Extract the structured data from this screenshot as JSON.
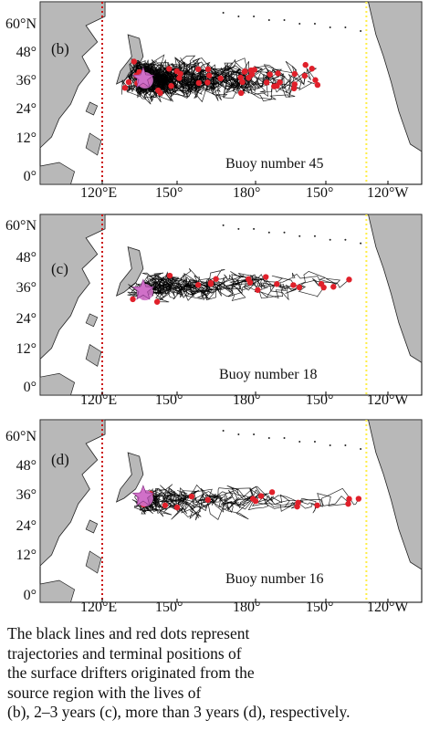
{
  "panels": [
    {
      "id": "b",
      "label": "(b)",
      "buoy_text": "Buoy number 45",
      "buoy_count": 45,
      "y_ticks": [
        "60°N",
        "48°",
        "36°",
        "24°",
        "12°",
        "0°"
      ],
      "x_ticks": [
        "120°E",
        "150°",
        "180°",
        "150°",
        "120°W"
      ]
    },
    {
      "id": "c",
      "label": "(c)",
      "buoy_text": "Buoy number 18",
      "buoy_count": 18,
      "y_ticks": [
        "60°N",
        "48°",
        "36°",
        "24°",
        "12°",
        "0°"
      ],
      "x_ticks": [
        "120°E",
        "150°",
        "180°",
        "150°",
        "120°W"
      ]
    },
    {
      "id": "d",
      "label": "(d)",
      "buoy_text": "Buoy number 16",
      "buoy_count": 16,
      "y_ticks": [
        "60°N",
        "48°",
        "36°",
        "24°",
        "12°",
        "0°"
      ],
      "x_ticks": [
        "120°E",
        "150°",
        "180°",
        "150°",
        "120°W"
      ]
    }
  ],
  "caption": {
    "line1": "The black lines and red dots represent",
    "line2": "trajectories and terminal positions of",
    "line3": "the surface drifters originated from the",
    "line4": "source region with the lives of",
    "line5": "(b), 2–3 years (c), more than 3 years (d), respectively."
  },
  "colors": {
    "land": "#b8b8b8",
    "ocean": "#ffffff",
    "trajectory": "#000000",
    "terminal": "#e0202a",
    "source": "#d070c8",
    "west_line": "#cc1111",
    "east_line": "#ffee44"
  }
}
